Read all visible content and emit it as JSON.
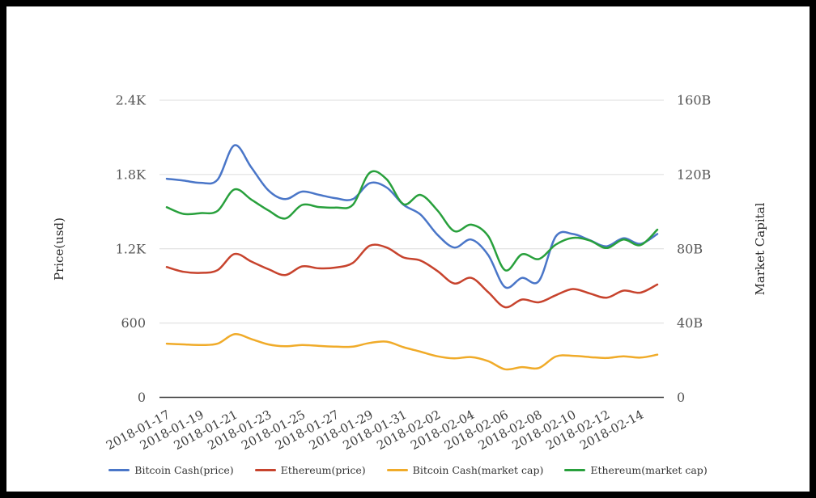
{
  "chart_data": {
    "type": "line",
    "grid": true,
    "legend_position": "bottom",
    "x": [
      "2018-01-17",
      "2018-01-18",
      "2018-01-19",
      "2018-01-20",
      "2018-01-21",
      "2018-01-22",
      "2018-01-23",
      "2018-01-24",
      "2018-01-25",
      "2018-01-26",
      "2018-01-27",
      "2018-01-28",
      "2018-01-29",
      "2018-01-30",
      "2018-01-31",
      "2018-02-01",
      "2018-02-02",
      "2018-02-03",
      "2018-02-04",
      "2018-02-05",
      "2018-02-06",
      "2018-02-07",
      "2018-02-08",
      "2018-02-09",
      "2018-02-10",
      "2018-02-11",
      "2018-02-12",
      "2018-02-13",
      "2018-02-14",
      "2018-02-15"
    ],
    "x_tick_labels": [
      "2018-01-17",
      "2018-01-19",
      "2018-01-21",
      "2018-01-23",
      "2018-01-25",
      "2018-01-27",
      "2018-01-29",
      "2018-01-31",
      "2018-02-02",
      "2018-02-04",
      "2018-02-06",
      "2018-02-08",
      "2018-02-10",
      "2018-02-12",
      "2018-02-14"
    ],
    "left_axis": {
      "title": "Price(usd)",
      "range": [
        0,
        2400
      ],
      "ticks": [
        "0",
        "600",
        "1.2K",
        "1.8K",
        "2.4K"
      ]
    },
    "right_axis": {
      "title": "Market Capital",
      "range": [
        0,
        160
      ],
      "ticks": [
        "0",
        "40B",
        "80B",
        "120B",
        "160B"
      ]
    },
    "series": [
      {
        "name": "Bitcoin Cash(price)",
        "axis": "price",
        "color": "#4a76c8",
        "values": [
          1766,
          1751,
          1733,
          1758,
          2036,
          1857,
          1673,
          1601,
          1662,
          1636,
          1608,
          1601,
          1730,
          1695,
          1555,
          1477,
          1314,
          1210,
          1275,
          1150,
          890,
          965,
          940,
          1300,
          1320,
          1270,
          1220,
          1285,
          1240,
          1320
        ]
      },
      {
        "name": "Ethereum(price)",
        "axis": "price",
        "color": "#c7432d",
        "values": [
          1053,
          1014,
          1006,
          1027,
          1158,
          1097,
          1036,
          988,
          1058,
          1042,
          1049,
          1086,
          1225,
          1210,
          1130,
          1105,
          1021,
          920,
          965,
          850,
          728,
          790,
          768,
          825,
          875,
          840,
          805,
          862,
          846,
          912
        ]
      },
      {
        "name": "Bitcoin Cash(market cap)",
        "axis": "market_cap",
        "color": "#f0ab29",
        "values": [
          28.9,
          28.5,
          28.2,
          28.9,
          34.0,
          31.4,
          28.5,
          27.5,
          28.2,
          27.7,
          27.3,
          27.3,
          29.3,
          30.0,
          27.0,
          24.6,
          22.1,
          21.0,
          21.7,
          19.5,
          15.1,
          16.3,
          15.8,
          22.0,
          22.4,
          21.7,
          21.2,
          22.1,
          21.4,
          23.0
        ]
      },
      {
        "name": "Ethereum(market cap)",
        "axis": "market_cap",
        "color": "#28a03c",
        "values": [
          102.4,
          98.8,
          99.2,
          100.4,
          112.0,
          106.5,
          100.7,
          96.3,
          103.6,
          102.5,
          102.2,
          103.7,
          121.0,
          117.4,
          104.0,
          109.0,
          100.7,
          89.5,
          93.0,
          86.9,
          68.5,
          77.0,
          74.5,
          82.3,
          85.9,
          84.5,
          80.4,
          85.0,
          82.0,
          90.3
        ]
      }
    ],
    "legend": [
      "Bitcoin Cash(price)",
      "Ethereum(price)",
      "Bitcoin Cash(market cap)",
      "Ethereum(market cap)"
    ],
    "colors": {
      "grid_line": "#dcdcdc",
      "axis_line": "#3c3c3c",
      "background": "#ffffff",
      "frame": "#000000"
    }
  }
}
